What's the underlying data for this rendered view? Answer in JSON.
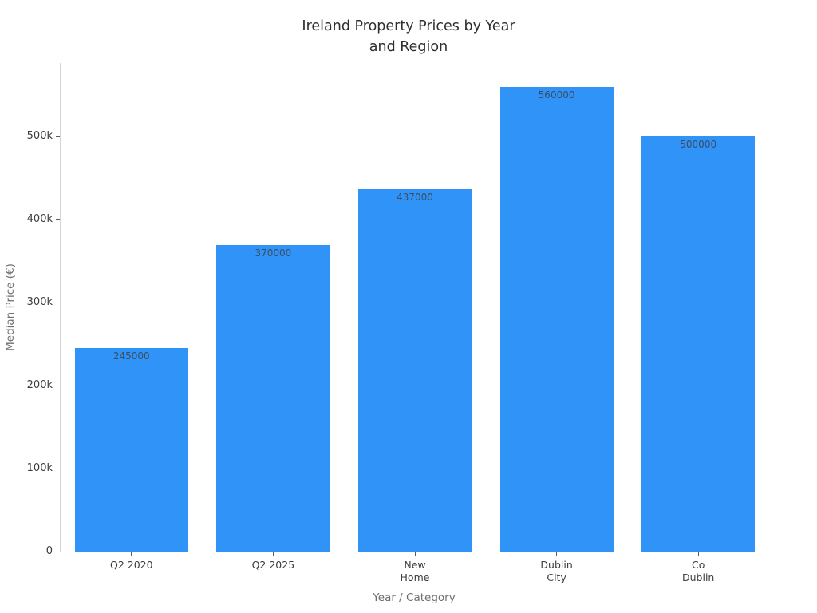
{
  "chart_data": {
    "type": "bar",
    "title": "Ireland Property Prices by Year and Region",
    "title_lines": [
      "Ireland Property Prices by Year",
      "and Region"
    ],
    "xlabel": "Year / Category",
    "ylabel": "Median Price (€)",
    "categories": [
      {
        "id": "q2-2020",
        "label_lines": [
          "Q2 2020"
        ]
      },
      {
        "id": "q2-2025",
        "label_lines": [
          "Q2 2025"
        ]
      },
      {
        "id": "new-home",
        "label_lines": [
          "New",
          "Home"
        ]
      },
      {
        "id": "dublin-city",
        "label_lines": [
          "Dublin",
          "City"
        ]
      },
      {
        "id": "co-dublin",
        "label_lines": [
          "Co",
          "Dublin"
        ]
      }
    ],
    "values": [
      245000,
      370000,
      437000,
      560000,
      500000
    ],
    "bar_value_labels": [
      "245000",
      "370000",
      "437000",
      "560000",
      "500000"
    ],
    "ylim": [
      0,
      589000
    ],
    "yticks": [
      0,
      100000,
      200000,
      300000,
      400000,
      500000
    ],
    "ytick_labels": [
      "0",
      "100k",
      "200k",
      "300k",
      "400k",
      "500k"
    ],
    "grid": false,
    "legend": "none"
  },
  "colors": {
    "bar_fill": "#3093f8",
    "bar_value_text": "#3b4d61",
    "title_text": "#2e2e2e",
    "tick_text": "#3c3c3c",
    "axis_title_text": "#6e6e6e",
    "axis_line": "#d6d6d6",
    "tick_mark": "#5a5a5a",
    "background": "#ffffff"
  }
}
